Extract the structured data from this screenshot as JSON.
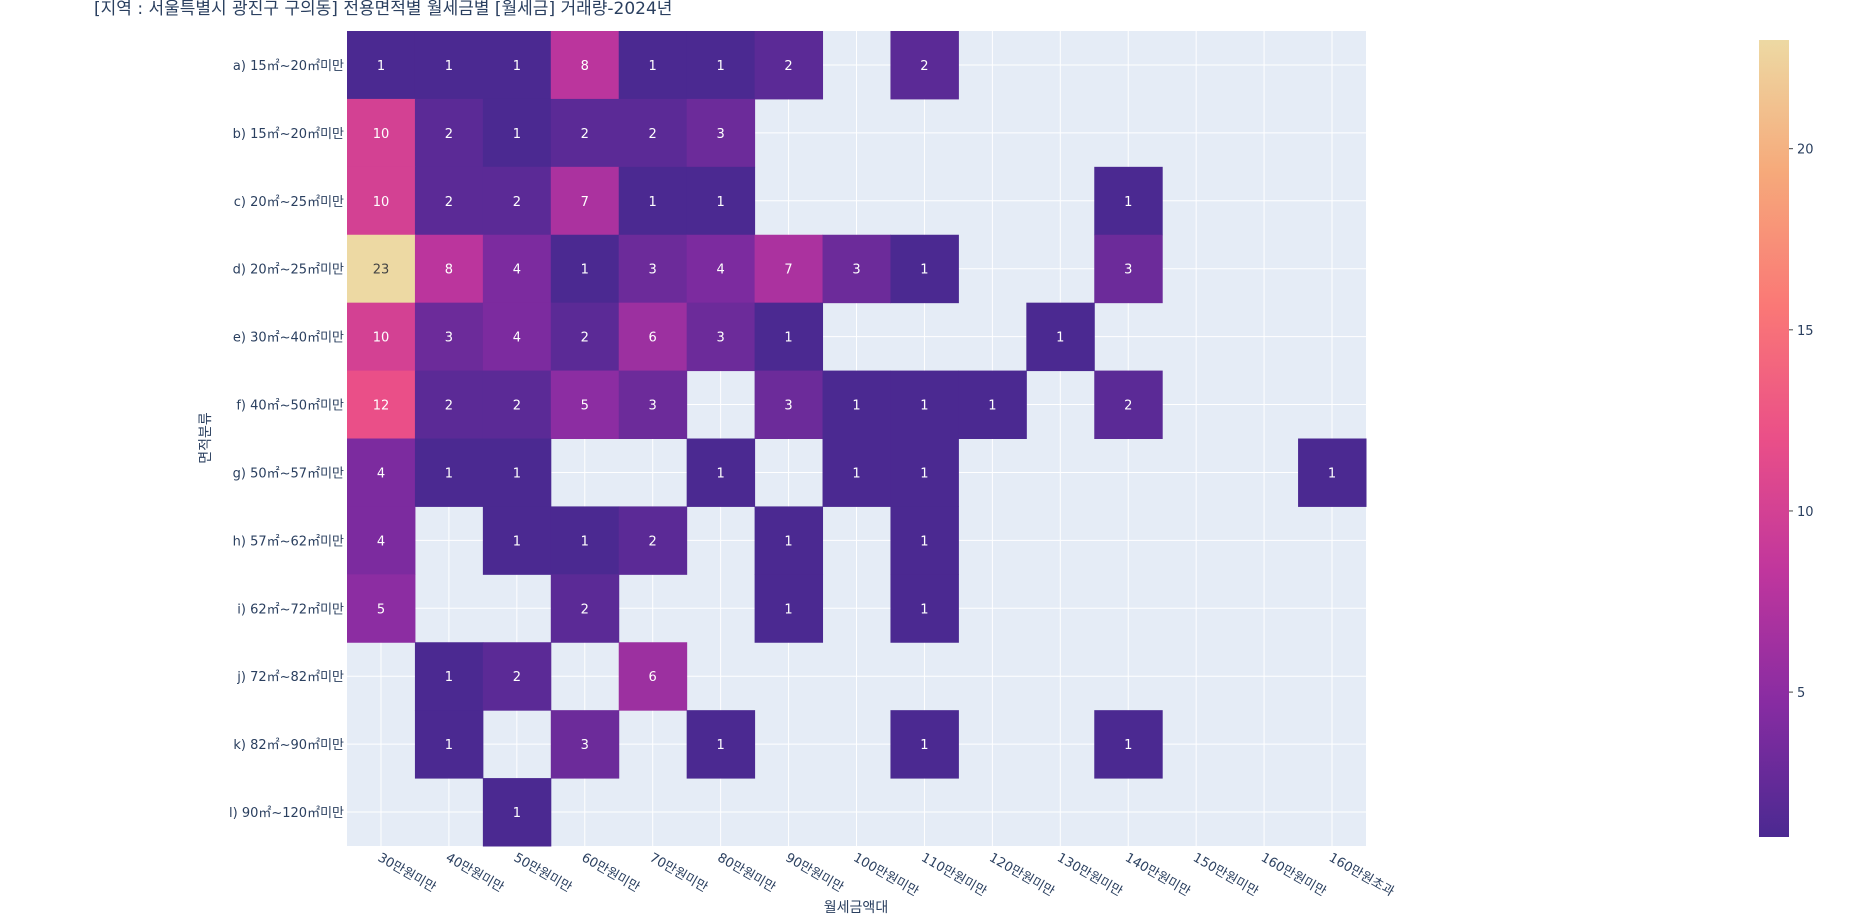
{
  "chart_data": {
    "type": "heatmap",
    "title": "[지역 : 서울특별시 광진구 구의동] 전용면적별 월세금별 [월세금] 거래량-2024년",
    "x_label": "월세금액대",
    "y_label": "면적분류",
    "x": [
      "30만원미만",
      "40만원미만",
      "50만원미만",
      "60만원미만",
      "70만원미만",
      "80만원미만",
      "90만원미만",
      "100만원미만",
      "110만원미만",
      "120만원미만",
      "130만원미만",
      "140만원미만",
      "150만원미만",
      "160만원미만",
      "160만원초과"
    ],
    "y": [
      "a) 15㎡~20㎡미만",
      "b) 15㎡~20㎡미만",
      "c) 20㎡~25㎡미만",
      "d) 20㎡~25㎡미만",
      "e) 30㎡~40㎡미만",
      "f) 40㎡~50㎡미만",
      "g) 50㎡~57㎡미만",
      "h) 57㎡~62㎡미만",
      "i) 62㎡~72㎡미만",
      "j) 72㎡~82㎡미만",
      "k) 82㎡~90㎡미만",
      "l) 90㎡~120㎡미만"
    ],
    "z": [
      [
        1,
        1,
        1,
        8,
        1,
        1,
        2,
        null,
        2,
        null,
        null,
        null,
        null,
        null,
        null
      ],
      [
        10,
        2,
        1,
        2,
        2,
        3,
        null,
        null,
        null,
        null,
        null,
        null,
        null,
        null,
        null
      ],
      [
        10,
        2,
        2,
        7,
        1,
        1,
        null,
        null,
        null,
        null,
        null,
        1,
        null,
        null,
        null
      ],
      [
        23,
        8,
        4,
        1,
        3,
        4,
        7,
        3,
        1,
        null,
        null,
        3,
        null,
        null,
        null
      ],
      [
        10,
        3,
        4,
        2,
        6,
        3,
        1,
        null,
        null,
        null,
        1,
        null,
        null,
        null,
        null
      ],
      [
        12,
        2,
        2,
        5,
        3,
        null,
        3,
        1,
        1,
        1,
        null,
        2,
        null,
        null,
        null
      ],
      [
        4,
        1,
        1,
        null,
        null,
        1,
        null,
        1,
        1,
        null,
        null,
        null,
        null,
        null,
        1
      ],
      [
        4,
        null,
        1,
        1,
        2,
        null,
        1,
        null,
        1,
        null,
        null,
        null,
        null,
        null,
        null
      ],
      [
        5,
        null,
        null,
        2,
        null,
        null,
        1,
        null,
        1,
        null,
        null,
        null,
        null,
        null,
        null
      ],
      [
        null,
        1,
        2,
        null,
        6,
        null,
        null,
        null,
        null,
        null,
        null,
        null,
        null,
        null,
        null
      ],
      [
        null,
        1,
        null,
        3,
        null,
        1,
        null,
        null,
        1,
        null,
        null,
        1,
        null,
        null,
        null
      ],
      [
        null,
        null,
        1,
        null,
        null,
        null,
        null,
        null,
        null,
        null,
        null,
        null,
        null,
        null,
        null
      ]
    ],
    "colorscale": [
      "#4b2991",
      "#872ca2",
      "#c0369d",
      "#ea4f88",
      "#fa7876",
      "#f6a97a",
      "#edd9a3"
    ],
    "zlim": [
      1,
      23
    ],
    "zticks": [
      5,
      10,
      15,
      20
    ],
    "grid": true
  }
}
